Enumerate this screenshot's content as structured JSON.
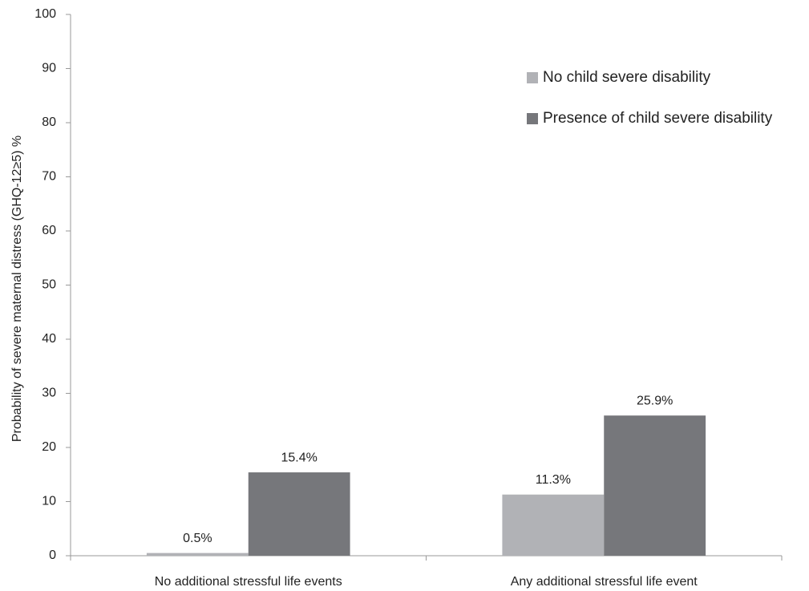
{
  "chart_data": {
    "type": "bar",
    "y_label": "Probability of severe maternal distress (GHQ-12≥5) %",
    "categories": [
      "No additional stressful life events",
      "Any additional stressful life event"
    ],
    "series": [
      {
        "name": "No child severe disability",
        "color": "#b1b2b6",
        "values": [
          0.5,
          11.3
        ],
        "value_labels": [
          "0.5%",
          "11.3%"
        ]
      },
      {
        "name": "Presence of child severe disability",
        "color": "#76777b",
        "values": [
          15.4,
          25.9
        ],
        "value_labels": [
          "15.4%",
          "25.9%"
        ]
      }
    ],
    "ylim": [
      0,
      100
    ],
    "yticks": [
      0,
      10,
      20,
      30,
      40,
      50,
      60,
      70,
      80,
      90,
      100
    ],
    "grid": false,
    "legend": "top-right"
  }
}
